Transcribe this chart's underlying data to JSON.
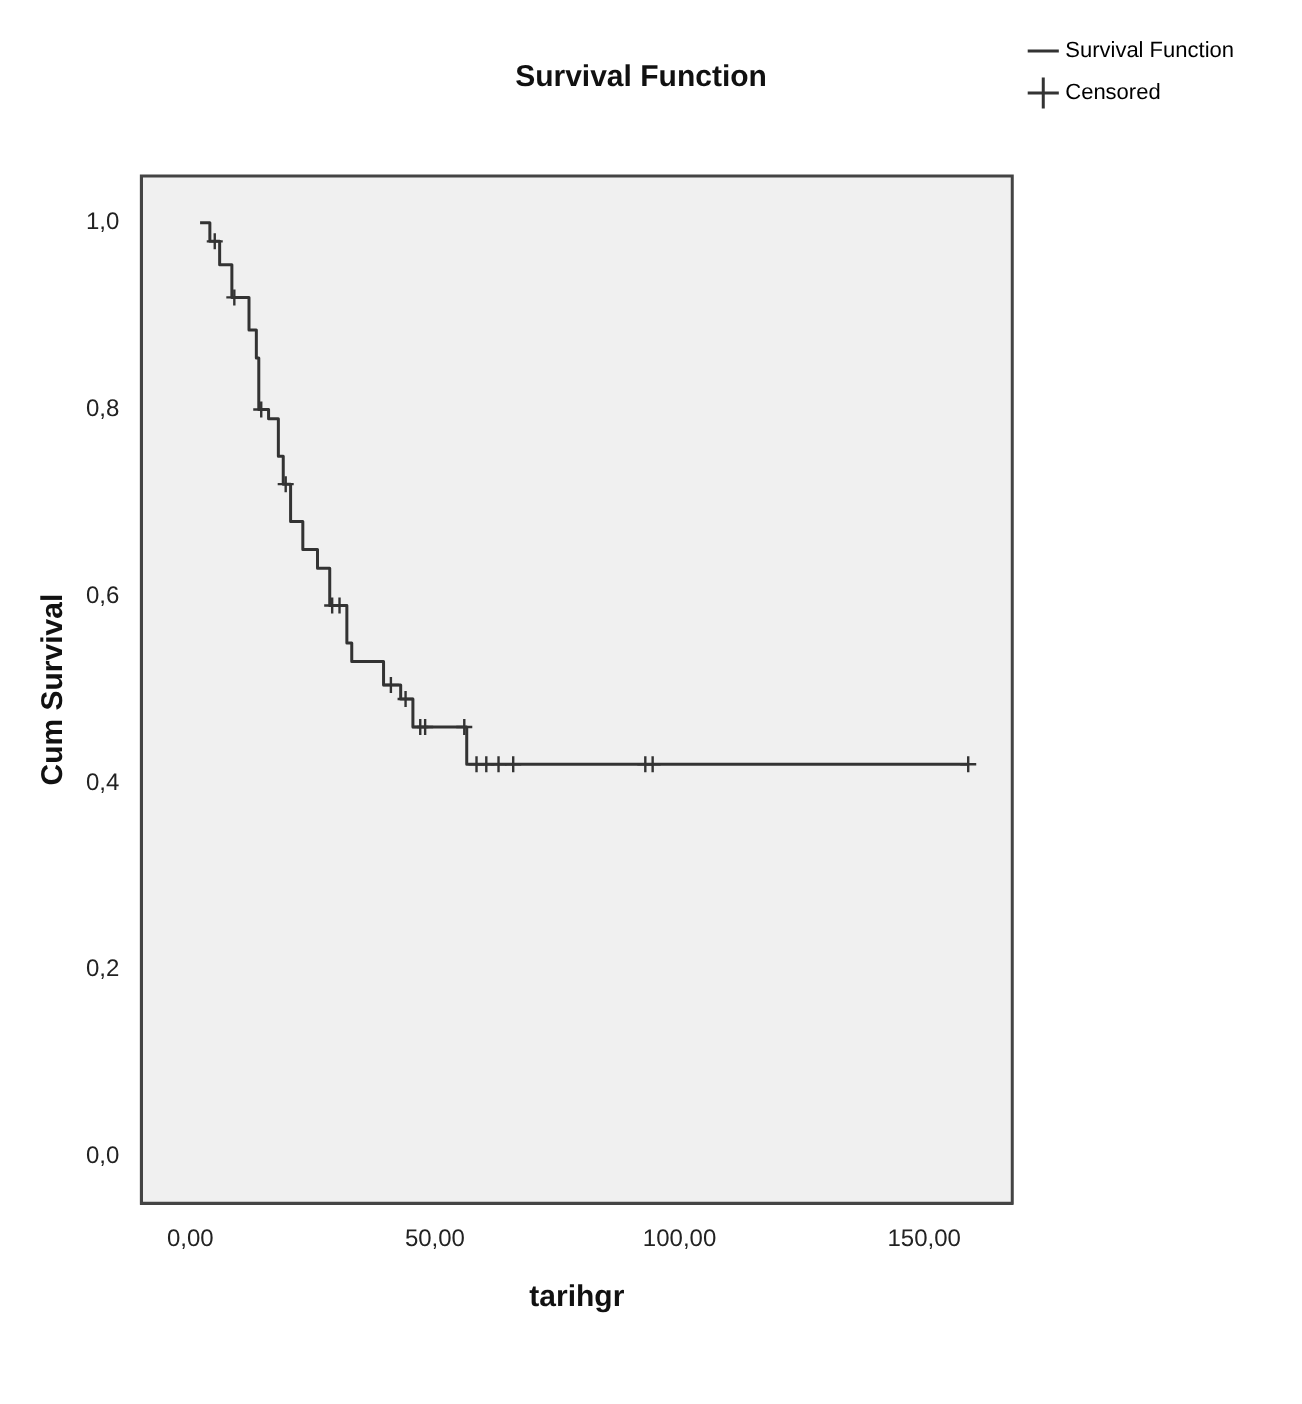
{
  "chart_data": {
    "type": "step",
    "title": "Survival Function",
    "xlabel": "tarihgr",
    "ylabel": "Cum Survival",
    "xlim": [
      -10,
      168
    ],
    "xticks": [
      {
        "value": 0,
        "label": "0,00"
      },
      {
        "value": 50,
        "label": "50,00"
      },
      {
        "value": 100,
        "label": "100,00"
      },
      {
        "value": 150,
        "label": "150,00"
      }
    ],
    "ylim": [
      -0.05,
      1.05
    ],
    "yticks": [
      {
        "value": 0,
        "label": "0,0"
      },
      {
        "value": 0.2,
        "label": "0,2"
      },
      {
        "value": 0.4,
        "label": "0,4"
      },
      {
        "value": 0.6,
        "label": "0,6"
      },
      {
        "value": 0.8,
        "label": "0,8"
      },
      {
        "value": 1.0,
        "label": "1,0"
      }
    ],
    "grid": false,
    "legend": "top right",
    "series": [
      {
        "name": "Survival Function",
        "color": "#333333",
        "marker": "none",
        "x": [
          2,
          4,
          6,
          8.5,
          12,
          13.5,
          14,
          16,
          18,
          19,
          20.5,
          23,
          26,
          28.5,
          32,
          33,
          39.5,
          43,
          45.5,
          56.5,
          159
        ],
        "values": [
          1.0,
          0.98,
          0.955,
          0.92,
          0.885,
          0.855,
          0.8,
          0.79,
          0.75,
          0.72,
          0.68,
          0.65,
          0.63,
          0.59,
          0.55,
          0.53,
          0.505,
          0.49,
          0.46,
          0.42,
          0.42
        ]
      },
      {
        "name": "Censored",
        "type": "scatter",
        "color": "#333333",
        "marker": "cross",
        "x": [
          5,
          9,
          14.5,
          19.5,
          29,
          30.5,
          41,
          44,
          47,
          48,
          56,
          58.5,
          60.5,
          63,
          66,
          93,
          94.5,
          159
        ],
        "values": [
          0.98,
          0.92,
          0.8,
          0.72,
          0.59,
          0.59,
          0.505,
          0.49,
          0.46,
          0.46,
          0.46,
          0.42,
          0.42,
          0.42,
          0.42,
          0.42,
          0.42,
          0.42
        ]
      }
    ]
  }
}
